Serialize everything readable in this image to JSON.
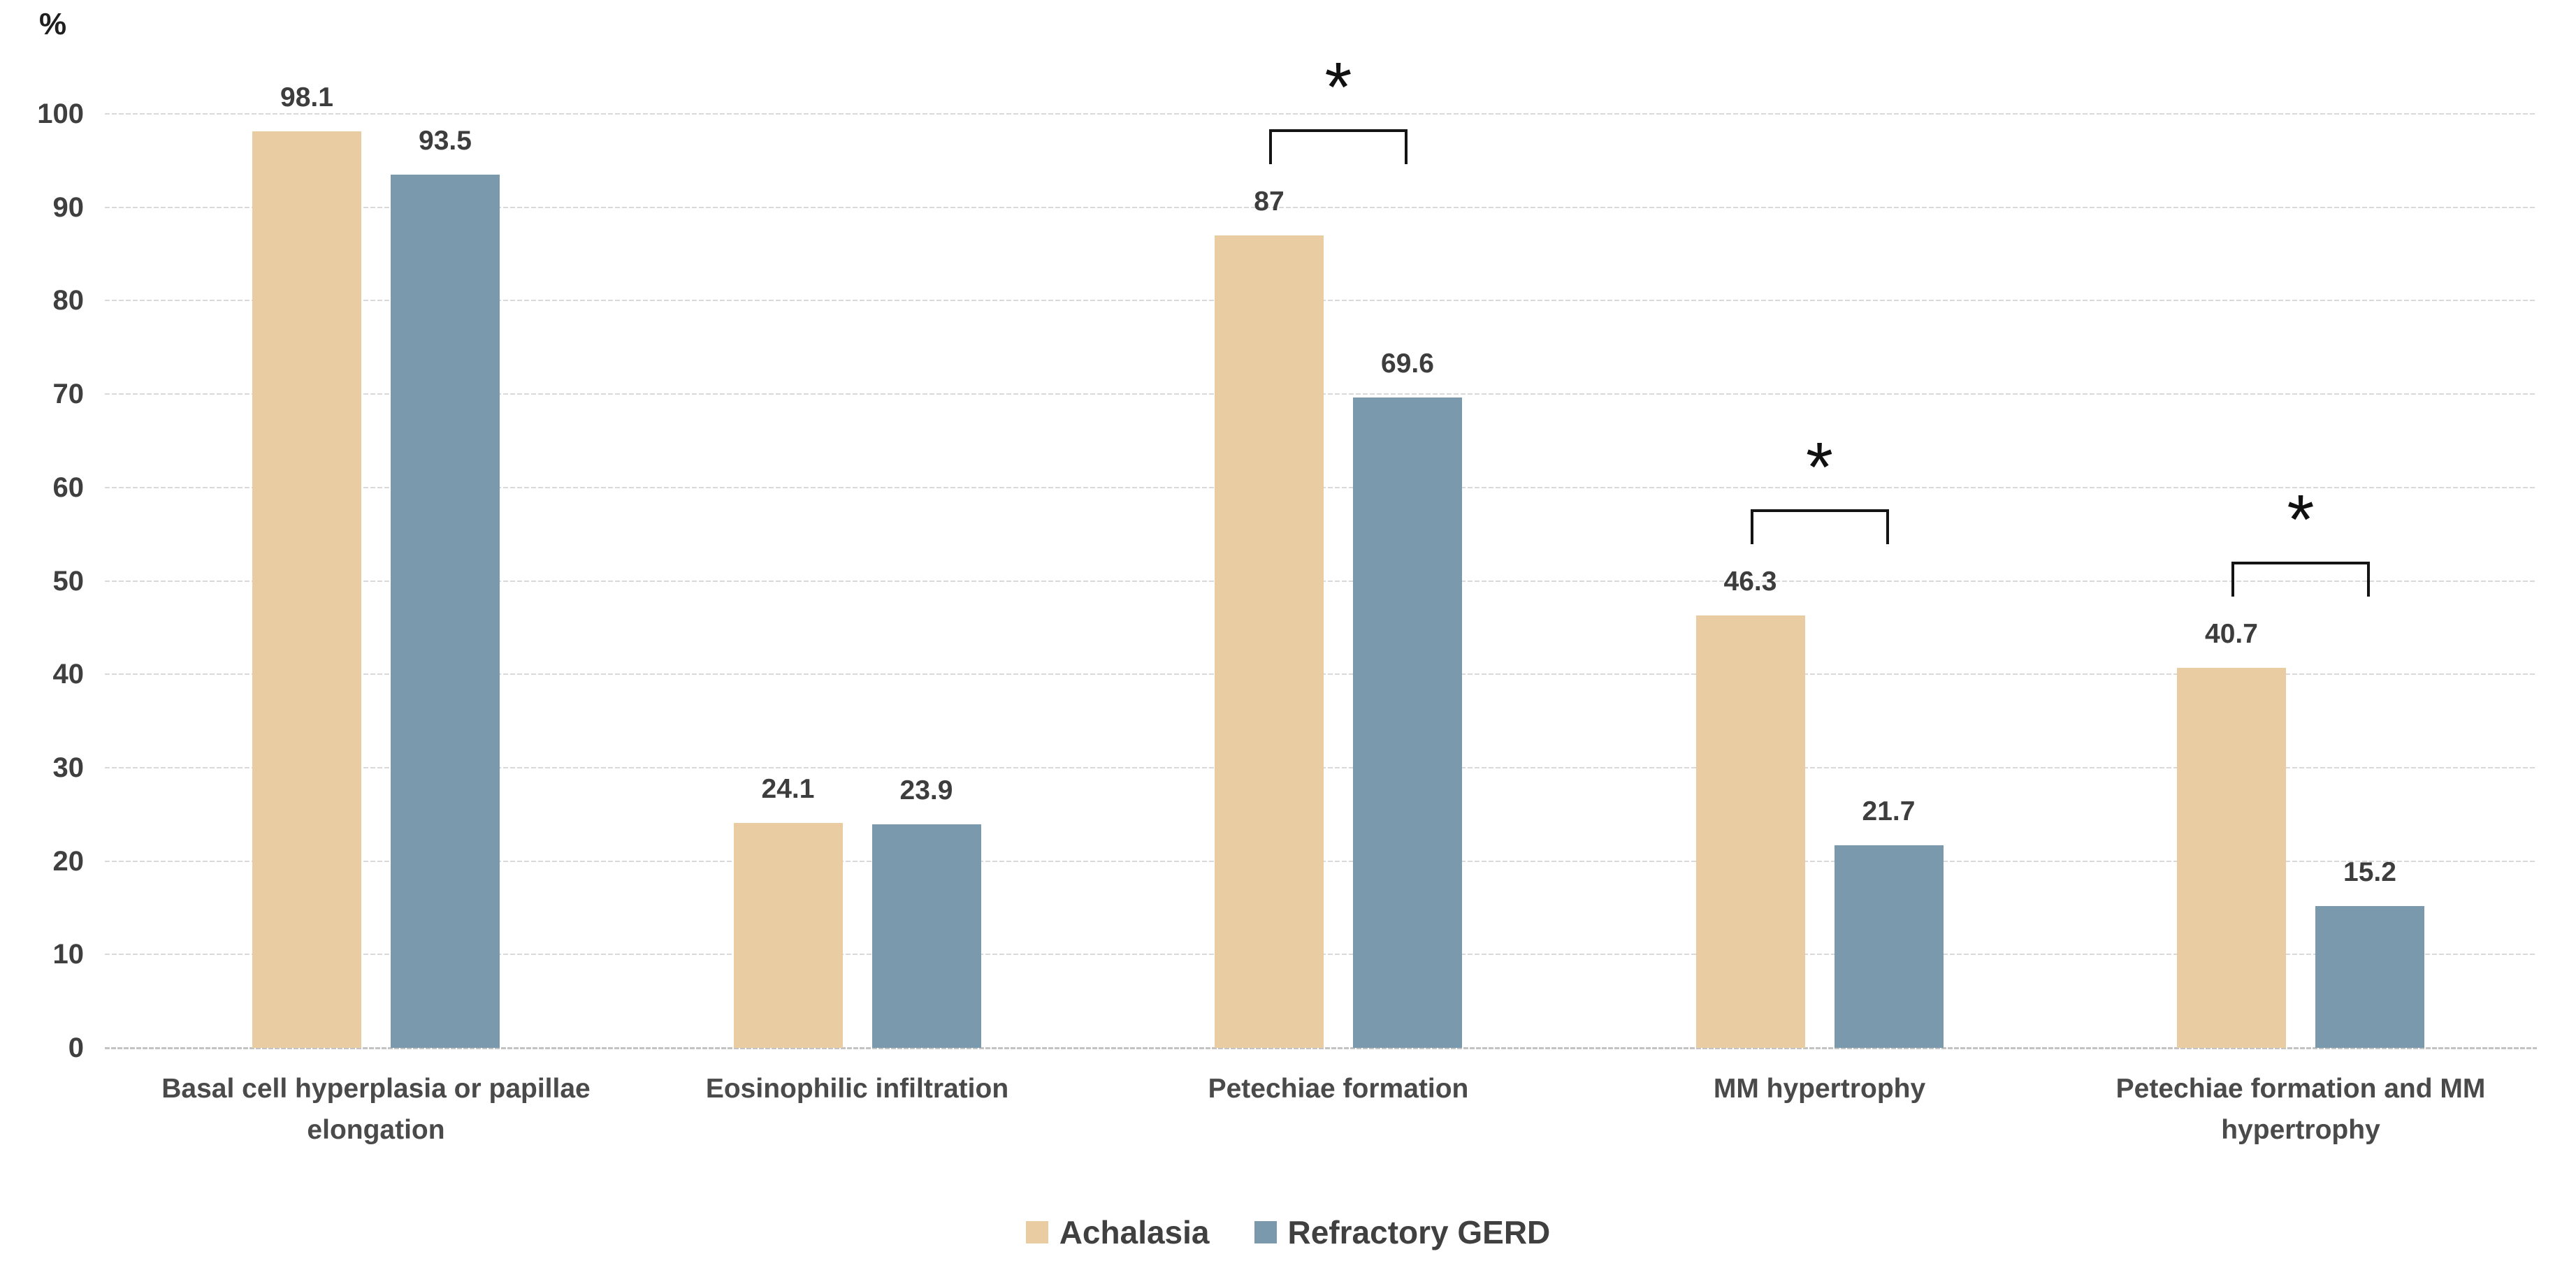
{
  "chart_data": {
    "type": "bar",
    "title": "",
    "ylabel": "%",
    "xlabel": "",
    "ylim": [
      0,
      100
    ],
    "yticks": [
      0,
      10,
      20,
      30,
      40,
      50,
      60,
      70,
      80,
      90,
      100
    ],
    "grid": true,
    "legend_position": "bottom",
    "categories": [
      "Basal cell hyperplasia or papillae elongation",
      "Eosinophilic infiltration",
      "Petechiae formation",
      "MM hypertrophy",
      "Petechiae formation and MM hypertrophy"
    ],
    "series": [
      {
        "name": "Achalasia",
        "color": "#e9cca2",
        "values": [
          98.1,
          24.1,
          87,
          46.3,
          40.7
        ],
        "labels": [
          "98.1",
          "24.1",
          "87",
          "46.3",
          "40.7"
        ]
      },
      {
        "name": "Refractory GERD",
        "color": "#7b99ac",
        "values": [
          93.5,
          23.9,
          69.6,
          21.7,
          15.2
        ],
        "labels": [
          "93.5",
          "23.9",
          "69.6",
          "21.7",
          "15.2"
        ]
      }
    ],
    "significance": {
      "symbol": "*",
      "group_indexes": [
        2,
        3,
        4
      ]
    }
  }
}
